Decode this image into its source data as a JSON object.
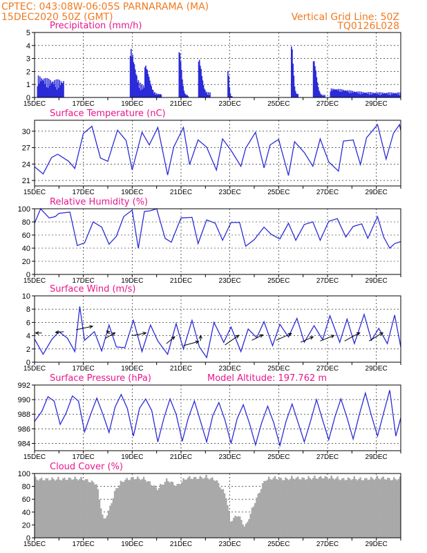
{
  "header": {
    "line1": "CPTEC:   043:08W-06:05S  PARNARAMA (MA)",
    "line2": "15DEC2020 50Z (GMT)",
    "grid_note": "Vertical Grid Line: 50Z",
    "code": "TQ0126L028"
  },
  "colors": {
    "header": "#f07a1f",
    "title": "#e8168c",
    "series": "#2b2bd8",
    "cloud": "#a9a9a9"
  },
  "chart_data": [
    {
      "id": "precip",
      "type": "bar",
      "title": "Precipitation (mm/h)",
      "ylim": [
        0,
        5
      ],
      "yticks": [
        0,
        1,
        2,
        3,
        4,
        5
      ],
      "xlabels": [
        "15DEC",
        "17DEC",
        "19DEC",
        "21DEC",
        "23DEC",
        "25DEC",
        "27DEC",
        "29DEC"
      ],
      "series": [
        {
          "t": [
            0.1,
            1.2
          ],
          "v": [
            0.3,
            1.4
          ]
        },
        {
          "t": [
            3.9,
            4.6
          ],
          "v": [
            2.8,
            1.0
          ]
        },
        {
          "t": [
            4.5,
            5.2
          ],
          "v": [
            2.2,
            0.3
          ]
        },
        {
          "t": [
            5.9,
            6.3
          ],
          "v": [
            3.4,
            0.2
          ]
        },
        {
          "t": [
            6.7,
            7.2
          ],
          "v": [
            2.6,
            0.4
          ]
        },
        {
          "t": [
            7.9,
            8.1
          ],
          "v": [
            2.0,
            0.1
          ]
        },
        {
          "t": [
            10.5,
            10.8
          ],
          "v": [
            3.8,
            0.3
          ]
        },
        {
          "t": [
            11.4,
            11.9
          ],
          "v": [
            2.7,
            0.2
          ]
        },
        {
          "t": [
            12.1,
            15.0
          ],
          "v": [
            0.3,
            0.4
          ]
        }
      ]
    },
    {
      "id": "temp",
      "type": "line",
      "title": "Surface Temperature (nC)",
      "ylim": [
        20,
        32
      ],
      "yticks": [
        21,
        24,
        27,
        30
      ],
      "xlabels": [
        "15DEC",
        "17DEC",
        "19DEC",
        "21DEC",
        "23DEC",
        "25DEC",
        "27DEC",
        "29DEC"
      ],
      "t": [
        0.0,
        0.35,
        0.7,
        0.95,
        1.4,
        1.65,
        2.0,
        2.35,
        2.7,
        3.0,
        3.4,
        3.75,
        4.0,
        4.4,
        4.7,
        5.05,
        5.45,
        5.7,
        6.1,
        6.35,
        6.7,
        7.05,
        7.45,
        7.7,
        8.05,
        8.45,
        8.65,
        9.05,
        9.4,
        9.65,
        10.0,
        10.4,
        10.65,
        11.05,
        11.4,
        11.7,
        12.05,
        12.45,
        12.65,
        13.05,
        13.35,
        13.6,
        14.05,
        14.4,
        14.7,
        14.95,
        15.0
      ],
      "v": [
        23.5,
        22.2,
        25.2,
        25.8,
        24.5,
        23.2,
        29.6,
        30.9,
        25.1,
        24.5,
        30.2,
        28.3,
        22.9,
        29.8,
        27.5,
        30.7,
        22.0,
        27.1,
        30.7,
        23.9,
        28.4,
        27.1,
        22.9,
        28.6,
        26.5,
        23.6,
        26.9,
        29.8,
        23.3,
        27.5,
        28.5,
        21.9,
        28.1,
        26.1,
        23.6,
        28.6,
        24.4,
        22.7,
        28.2,
        28.4,
        23.9,
        28.8,
        31.2,
        24.9,
        29.6,
        31.2,
        30.1
      ]
    },
    {
      "id": "rh",
      "type": "line",
      "title": "Relative Humidity (%)",
      "ylim": [
        0,
        100
      ],
      "yticks": [
        0,
        20,
        40,
        60,
        80,
        100
      ],
      "xlabels": [
        "15DEC",
        "17DEC",
        "19DEC",
        "21DEC",
        "23DEC",
        "25DEC",
        "27DEC",
        "29DEC"
      ],
      "t": [
        0.0,
        0.25,
        0.6,
        0.85,
        1.0,
        1.45,
        1.75,
        2.05,
        2.4,
        2.75,
        3.05,
        3.35,
        3.65,
        4.0,
        4.25,
        4.5,
        4.75,
        5.0,
        5.35,
        5.6,
        6.0,
        6.45,
        6.7,
        7.05,
        7.4,
        7.7,
        8.05,
        8.4,
        8.65,
        9.0,
        9.4,
        9.7,
        10.05,
        10.4,
        10.7,
        11.05,
        11.4,
        11.7,
        12.05,
        12.4,
        12.75,
        13.05,
        13.4,
        13.65,
        14.05,
        14.3,
        14.55,
        14.75,
        15.0
      ],
      "v": [
        78,
        100,
        86,
        88,
        93,
        95,
        44,
        48,
        80,
        72,
        46,
        58,
        88,
        98,
        40,
        96,
        97,
        100,
        55,
        49,
        86,
        87,
        47,
        83,
        78,
        52,
        79,
        79,
        43,
        53,
        72,
        61,
        54,
        78,
        52,
        76,
        80,
        52,
        81,
        85,
        57,
        73,
        77,
        55,
        88,
        57,
        40,
        47,
        50
      ]
    },
    {
      "id": "wind",
      "type": "line",
      "title": "Surface Wind (m/s)",
      "ylim": [
        0,
        10
      ],
      "yticks": [
        0,
        2,
        4,
        6,
        8,
        10
      ],
      "xlabels": [
        "15DEC",
        "17DEC",
        "19DEC",
        "21DEC",
        "23DEC",
        "25DEC",
        "27DEC",
        "29DEC"
      ],
      "t": [
        0.0,
        0.35,
        0.7,
        1.0,
        1.35,
        1.65,
        1.85,
        2.05,
        2.45,
        2.75,
        3.05,
        3.35,
        3.7,
        4.05,
        4.4,
        4.75,
        5.05,
        5.45,
        5.8,
        6.1,
        6.45,
        6.75,
        7.05,
        7.35,
        7.75,
        8.05,
        8.45,
        8.75,
        9.1,
        9.4,
        9.75,
        10.05,
        10.4,
        10.75,
        11.05,
        11.45,
        11.8,
        12.1,
        12.5,
        12.8,
        13.1,
        13.5,
        13.8,
        14.1,
        14.45,
        14.75,
        15.0
      ],
      "v": [
        3.5,
        1.2,
        3.4,
        4.6,
        3.6,
        1.6,
        8.4,
        3.3,
        4.6,
        1.7,
        5.6,
        2.3,
        2.2,
        6.3,
        1.6,
        5.6,
        3.2,
        1.2,
        5.8,
        2.0,
        6.3,
        2.3,
        0.7,
        6.0,
        3.0,
        5.3,
        1.6,
        5.0,
        3.7,
        6.1,
        2.5,
        5.7,
        3.8,
        6.6,
        3.0,
        5.5,
        3.4,
        7.0,
        3.0,
        6.5,
        2.8,
        7.2,
        3.3,
        5.1,
        2.8,
        7.1,
        2.3
      ],
      "vectors": [
        {
          "t": 0.3,
          "s": 4.4,
          "dx": -9,
          "dy": 0
        },
        {
          "t": 1.2,
          "s": 4.6,
          "dx": -12,
          "dy": 1
        },
        {
          "t": 1.7,
          "s": 4.9,
          "dx": 24,
          "dy": -5
        },
        {
          "t": 2.9,
          "s": 3.6,
          "dx": 14,
          "dy": -8
        },
        {
          "t": 3.1,
          "s": 4.3,
          "dx": -5,
          "dy": -4
        },
        {
          "t": 4.0,
          "s": 4.0,
          "dx": 20,
          "dy": -4
        },
        {
          "t": 5.4,
          "s": 2.8,
          "dx": 12,
          "dy": -10
        },
        {
          "t": 6.1,
          "s": 2.5,
          "dx": 22,
          "dy": -6
        },
        {
          "t": 6.8,
          "s": 3.2,
          "dx": 0,
          "dy": -8
        },
        {
          "t": 7.8,
          "s": 2.6,
          "dx": 20,
          "dy": -14
        },
        {
          "t": 8.9,
          "s": 3.3,
          "dx": 16,
          "dy": -8
        },
        {
          "t": 9.9,
          "s": 3.3,
          "dx": 22,
          "dy": -10
        },
        {
          "t": 10.9,
          "s": 3.0,
          "dx": 18,
          "dy": -8
        },
        {
          "t": 11.7,
          "s": 3.2,
          "dx": 20,
          "dy": -8
        },
        {
          "t": 12.7,
          "s": 3.2,
          "dx": 22,
          "dy": -12
        },
        {
          "t": 13.7,
          "s": 3.2,
          "dx": 20,
          "dy": -12
        }
      ]
    },
    {
      "id": "press",
      "type": "line",
      "title": "Surface Pressure (hPa)",
      "annotation": "Model Altitude: 197.762 m",
      "ylim": [
        983,
        992
      ],
      "yticks": [
        984,
        986,
        988,
        990,
        992
      ],
      "xlabels": [
        "15DEC",
        "17DEC",
        "19DEC",
        "21DEC",
        "23DEC",
        "25DEC",
        "27DEC",
        "29DEC"
      ],
      "t": [
        0.0,
        0.3,
        0.55,
        0.8,
        1.05,
        1.3,
        1.55,
        1.8,
        2.05,
        2.3,
        2.55,
        2.8,
        3.05,
        3.3,
        3.55,
        3.8,
        4.05,
        4.3,
        4.55,
        4.8,
        5.05,
        5.3,
        5.55,
        5.8,
        6.05,
        6.3,
        6.55,
        6.8,
        7.05,
        7.3,
        7.55,
        7.8,
        8.05,
        8.3,
        8.55,
        8.8,
        9.05,
        9.3,
        9.55,
        9.8,
        10.05,
        10.3,
        10.55,
        10.8,
        11.05,
        11.3,
        11.55,
        11.8,
        12.05,
        12.3,
        12.55,
        12.8,
        13.05,
        13.3,
        13.55,
        13.8,
        14.05,
        14.3,
        14.55,
        14.8,
        15.0
      ],
      "v": [
        987.0,
        988.4,
        990.4,
        989.8,
        986.6,
        988.2,
        990.5,
        989.8,
        985.6,
        988.0,
        990.2,
        988.0,
        985.5,
        989.0,
        990.7,
        988.8,
        985.0,
        988.8,
        990.1,
        988.5,
        984.2,
        987.5,
        990.1,
        988.0,
        984.3,
        987.5,
        989.8,
        987.0,
        984.2,
        987.8,
        989.6,
        987.2,
        984.0,
        987.4,
        989.3,
        986.8,
        983.8,
        986.8,
        989.1,
        986.8,
        983.7,
        987.0,
        989.4,
        986.8,
        984.2,
        987.0,
        990.0,
        987.2,
        984.5,
        987.6,
        990.1,
        987.5,
        984.6,
        987.9,
        990.9,
        987.8,
        985.0,
        988.2,
        991.3,
        985.0,
        987.5
      ]
    },
    {
      "id": "cloud",
      "type": "bar",
      "title": "Cloud Cover (%)",
      "ylim": [
        0,
        100
      ],
      "yticks": [
        0,
        20,
        40,
        60,
        80,
        100
      ],
      "xlabels": [
        "15DEC",
        "17DEC",
        "19DEC",
        "21DEC",
        "23DEC",
        "25DEC",
        "27DEC",
        "29DEC"
      ],
      "t": [
        0.0,
        0.5,
        1.0,
        1.5,
        2.0,
        2.5,
        2.8,
        3.0,
        3.3,
        3.6,
        4.0,
        4.5,
        5.0,
        5.4,
        5.8,
        6.2,
        6.6,
        7.0,
        7.4,
        7.8,
        8.0,
        8.3,
        8.6,
        9.0,
        9.4,
        9.8,
        10.2,
        10.6,
        11.0,
        11.4,
        11.8,
        12.2,
        12.6,
        13.0,
        13.4,
        13.8,
        14.2,
        14.6,
        15.0
      ],
      "v": [
        95,
        95,
        95,
        96,
        95,
        88,
        30,
        45,
        80,
        93,
        97,
        95,
        80,
        94,
        85,
        97,
        97,
        98,
        94,
        70,
        30,
        40,
        20,
        60,
        94,
        97,
        95,
        97,
        96,
        97,
        98,
        97,
        95,
        96,
        95,
        96,
        97,
        95,
        96
      ]
    }
  ]
}
